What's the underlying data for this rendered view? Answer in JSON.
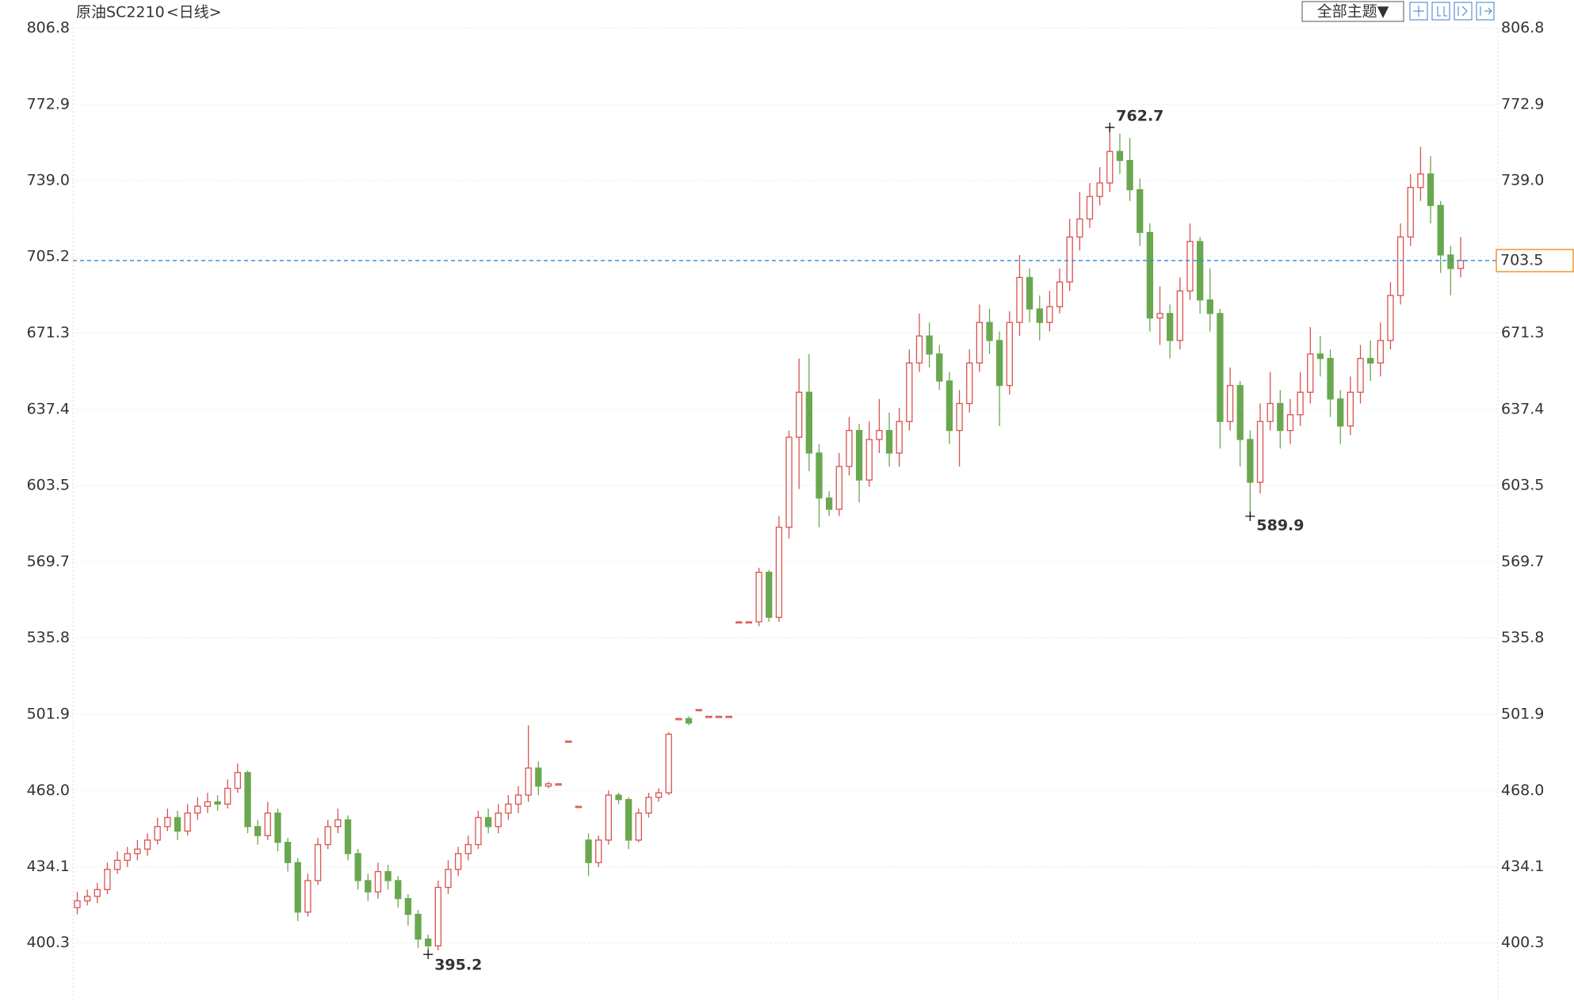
{
  "toolbar": {
    "theme_button": "全部主题▼"
  },
  "chart_data": {
    "type": "candlestick",
    "title": "原油SC2210",
    "subtitle": "<日线>",
    "up_color": "#d9534f",
    "down_color": "#6aa84f",
    "last_line_color": "#3a8fd9",
    "last_box_color": "#f0962e",
    "ylim": [
      374.5,
      806.8
    ],
    "yticks": [
      400.3,
      434.1,
      {
        "value": 468,
        "label": "468.0"
      },
      501.9,
      535.8,
      569.7,
      603.5,
      637.4,
      671.3,
      705.2,
      {
        "value": 739,
        "label": "739.0"
      },
      772.9,
      806.8
    ],
    "grid": true,
    "open": [
      416,
      419,
      421,
      424,
      433,
      437,
      440,
      442,
      446,
      452,
      456,
      450,
      458,
      461,
      463,
      462,
      469,
      476,
      452,
      448,
      458,
      445,
      436,
      414,
      428,
      444,
      452,
      455,
      440,
      428,
      423,
      432,
      428,
      420,
      413,
      402,
      399,
      425,
      433,
      440,
      444,
      456,
      452,
      458,
      462,
      466,
      478,
      470,
      471,
      490,
      461,
      446,
      436,
      446,
      466,
      464,
      446,
      458,
      465,
      467,
      500,
      500,
      504,
      501,
      501,
      501,
      543,
      543,
      543,
      565,
      545,
      585,
      625,
      645,
      618,
      598,
      593,
      612,
      628,
      606,
      624,
      628,
      618,
      632,
      658,
      670,
      662,
      650,
      628,
      640,
      658,
      676,
      668,
      648,
      676,
      696,
      682,
      676,
      683,
      694,
      714,
      722,
      732,
      738,
      752,
      748,
      735,
      716,
      678,
      680,
      668,
      690,
      712,
      686,
      680,
      632,
      648,
      624,
      605,
      632,
      640,
      628,
      635,
      645,
      662,
      660,
      642,
      630,
      645,
      660,
      658,
      668,
      688,
      714,
      736,
      742,
      728,
      706,
      700
    ],
    "high": [
      423,
      424,
      427,
      436,
      441,
      443,
      446,
      449,
      456,
      460,
      459,
      462,
      465,
      467,
      466,
      473,
      480,
      477,
      455,
      463,
      460,
      447,
      438,
      431,
      447,
      455,
      460,
      457,
      442,
      431,
      436,
      435,
      430,
      422,
      415,
      404,
      428,
      437,
      443,
      448,
      459,
      460,
      462,
      466,
      470,
      497,
      481,
      472,
      471,
      490,
      461,
      449,
      448,
      468,
      467,
      465,
      460,
      467,
      469,
      494,
      500,
      501,
      504,
      501,
      501,
      501,
      543,
      543,
      567,
      566,
      590,
      628,
      660,
      662,
      622,
      601,
      618,
      634,
      631,
      632,
      642,
      636,
      638,
      664,
      680,
      676,
      666,
      654,
      646,
      664,
      684,
      682,
      672,
      681,
      706,
      700,
      688,
      690,
      700,
      722,
      734,
      738,
      745,
      762.7,
      760,
      758,
      740,
      720,
      692,
      684,
      696,
      720,
      714,
      700,
      682,
      656,
      650,
      628,
      640,
      654,
      646,
      642,
      654,
      674,
      670,
      664,
      646,
      652,
      666,
      668,
      676,
      694,
      720,
      742,
      754,
      750,
      730,
      710,
      714
    ],
    "low": [
      413,
      417,
      418,
      422,
      431,
      434,
      437,
      439,
      444,
      450,
      446,
      448,
      455,
      458,
      459,
      460,
      467,
      449,
      444,
      446,
      441,
      432,
      410,
      412,
      426,
      442,
      449,
      437,
      424,
      419,
      420,
      424,
      416,
      408,
      398,
      395.2,
      397,
      422,
      430,
      437,
      442,
      449,
      449,
      455,
      458,
      463,
      466,
      469,
      471,
      490,
      461,
      430,
      434,
      444,
      462,
      442,
      445,
      456,
      463,
      466,
      500,
      497,
      504,
      501,
      501,
      501,
      543,
      543,
      541,
      543,
      543,
      580,
      602,
      610,
      585,
      590,
      590,
      608,
      596,
      603,
      618,
      612,
      612,
      628,
      654,
      656,
      646,
      622,
      612,
      636,
      654,
      662,
      630,
      644,
      670,
      676,
      668,
      672,
      680,
      690,
      708,
      718,
      728,
      734,
      742,
      730,
      710,
      672,
      666,
      660,
      664,
      686,
      680,
      672,
      620,
      628,
      612,
      589.9,
      600,
      628,
      620,
      622,
      630,
      640,
      652,
      634,
      622,
      626,
      640,
      650,
      652,
      664,
      684,
      710,
      730,
      720,
      698,
      688,
      696
    ],
    "close": [
      419,
      421,
      424,
      433,
      437,
      440,
      442,
      446,
      452,
      456,
      450,
      458,
      461,
      463,
      462,
      469,
      476,
      452,
      448,
      458,
      445,
      436,
      414,
      428,
      444,
      452,
      455,
      440,
      428,
      423,
      432,
      428,
      420,
      413,
      402,
      399,
      425,
      433,
      440,
      444,
      456,
      452,
      458,
      462,
      466,
      478,
      470,
      471,
      471,
      490,
      461,
      436,
      446,
      466,
      464,
      446,
      458,
      465,
      467,
      493,
      500,
      498,
      504,
      501,
      501,
      501,
      543,
      543,
      565,
      545,
      585,
      625,
      645,
      618,
      598,
      593,
      612,
      628,
      606,
      624,
      628,
      618,
      632,
      658,
      670,
      662,
      650,
      628,
      640,
      658,
      676,
      668,
      648,
      676,
      696,
      682,
      676,
      683,
      694,
      714,
      722,
      732,
      738,
      752,
      748,
      735,
      716,
      678,
      680,
      668,
      690,
      712,
      686,
      680,
      632,
      648,
      624,
      605,
      632,
      640,
      628,
      635,
      645,
      662,
      660,
      642,
      630,
      645,
      660,
      658,
      668,
      688,
      714,
      736,
      742,
      728,
      706,
      700,
      703.5
    ]
  }
}
